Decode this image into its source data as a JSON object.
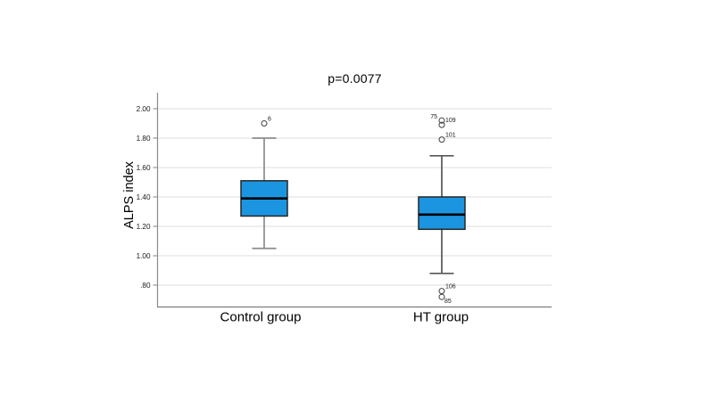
{
  "chart_data": {
    "type": "boxplot",
    "title": "p=0.0077",
    "ylabel": "ALPS index",
    "xlabel": "",
    "categories": [
      "Control group",
      "HT group"
    ],
    "y_ticks": [
      {
        "label": "2.00",
        "value": 2.0
      },
      {
        "label": "1.80",
        "value": 1.8
      },
      {
        "label": "1.60",
        "value": 1.6
      },
      {
        "label": "1.40",
        "value": 1.4
      },
      {
        "label": "1.20",
        "value": 1.2
      },
      {
        "label": "1.00",
        "value": 1.0
      },
      {
        "label": ".80",
        "value": 0.8
      }
    ],
    "ylim": [
      0.65,
      2.1
    ],
    "grid": true,
    "legend": "none",
    "series": [
      {
        "name": "Control group",
        "q1": 1.27,
        "median": 1.39,
        "q3": 1.51,
        "whisker_low": 1.05,
        "whisker_high": 1.8,
        "whisker_color": "#8c8c8c",
        "outliers": [
          {
            "value": 1.9,
            "label": "6",
            "label_pos": "right-above"
          }
        ]
      },
      {
        "name": "HT group",
        "q1": 1.18,
        "median": 1.28,
        "q3": 1.4,
        "whisker_low": 0.88,
        "whisker_high": 1.68,
        "whisker_color": "#575757",
        "outliers": [
          {
            "value": 1.92,
            "label": "75",
            "label_pos": "left-above"
          },
          {
            "value": 1.89,
            "label": "109",
            "label_pos": "right-above"
          },
          {
            "value": 1.79,
            "label": "101",
            "label_pos": "right-above"
          },
          {
            "value": 0.76,
            "label": "106",
            "label_pos": "right-above"
          },
          {
            "value": 0.72,
            "label": "85",
            "label_pos": "right-below"
          }
        ]
      }
    ],
    "colors": {
      "box_fill": "#1b95e0",
      "box_border": "#262626",
      "median_line": "#000000",
      "gridline": "#e4e4e4",
      "axis_line": "#8c8c8c",
      "outlier_stroke": "#404040",
      "text": "#000000"
    }
  }
}
